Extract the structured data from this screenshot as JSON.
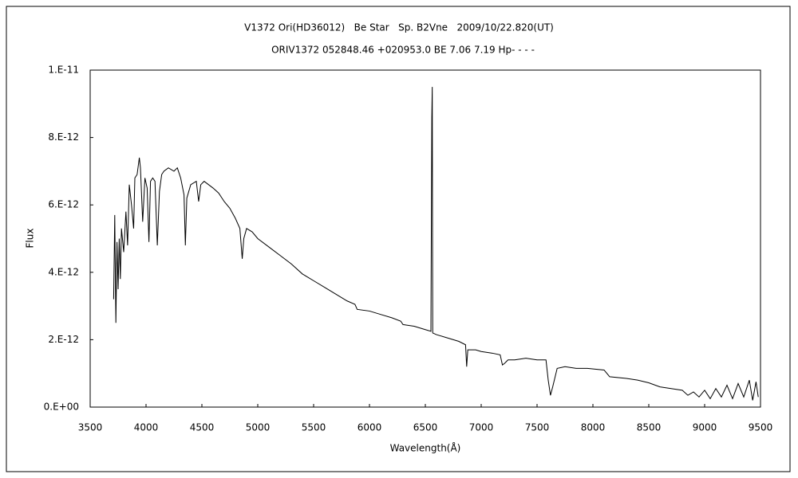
{
  "chart_data": {
    "type": "line",
    "title": "V1372 Ori(HD36012)   Be Star   Sp. B2Vne   2009/10/22.820(UT)",
    "subtitle": "ORIV1372 052848.46 +020953.0 BE 7.06 7.19 Hp- - - -",
    "x_label": "Wavelength(Å)",
    "y_label": "Flux",
    "color": "#000000",
    "xlim": [
      3500,
      9500
    ],
    "xticks": [
      3500,
      4000,
      4500,
      5000,
      5500,
      6000,
      6500,
      7000,
      7500,
      8000,
      8500,
      9000,
      9500
    ],
    "ylim": [
      0,
      1e-11
    ],
    "yticks": [
      {
        "value": 0,
        "label": "0.E+00"
      },
      {
        "value": 2e-12,
        "label": "2.E-12"
      },
      {
        "value": 4e-12,
        "label": "4.E-12"
      },
      {
        "value": 6e-12,
        "label": "6.E-12"
      },
      {
        "value": 8e-12,
        "label": "8.E-12"
      },
      {
        "value": 1e-11,
        "label": "1.E-11"
      }
    ],
    "x": [
      3710,
      3720,
      3730,
      3740,
      3750,
      3760,
      3770,
      3780,
      3800,
      3820,
      3835,
      3850,
      3870,
      3889,
      3900,
      3920,
      3940,
      3950,
      3970,
      3990,
      4010,
      4026,
      4040,
      4060,
      4080,
      4101,
      4120,
      4140,
      4160,
      4200,
      4250,
      4280,
      4310,
      4340,
      4352,
      4365,
      4400,
      4450,
      4471,
      4490,
      4520,
      4560,
      4600,
      4650,
      4700,
      4750,
      4800,
      4840,
      4861,
      4875,
      4900,
      4950,
      5000,
      5100,
      5200,
      5300,
      5400,
      5500,
      5600,
      5700,
      5800,
      5870,
      5890,
      6000,
      6100,
      6200,
      6280,
      6300,
      6400,
      6500,
      6550,
      6558,
      6562,
      6566,
      6600,
      6700,
      6800,
      6860,
      6870,
      6880,
      6950,
      7000,
      7100,
      7170,
      7190,
      7210,
      7240,
      7300,
      7400,
      7500,
      7580,
      7600,
      7620,
      7640,
      7680,
      7750,
      7850,
      7950,
      8100,
      8150,
      8300,
      8400,
      8500,
      8600,
      8700,
      8800,
      8850,
      8900,
      8950,
      9000,
      9050,
      9100,
      9150,
      9200,
      9250,
      9300,
      9350,
      9400,
      9430,
      9460,
      9480
    ],
    "values": [
      3.2e-12,
      5.7e-12,
      2.5e-12,
      4.9e-12,
      3.5e-12,
      5e-12,
      3.8e-12,
      5.3e-12,
      4.6e-12,
      5.8e-12,
      4.8e-12,
      6.6e-12,
      6e-12,
      5.3e-12,
      6.8e-12,
      6.9e-12,
      7.4e-12,
      7.1e-12,
      5.5e-12,
      6.8e-12,
      6.5e-12,
      4.9e-12,
      6.7e-12,
      6.8e-12,
      6.7e-12,
      4.8e-12,
      6.4e-12,
      6.9e-12,
      7e-12,
      7.1e-12,
      7e-12,
      7.1e-12,
      6.8e-12,
      6.3e-12,
      4.8e-12,
      6.2e-12,
      6.6e-12,
      6.7e-12,
      6.1e-12,
      6.6e-12,
      6.7e-12,
      6.6e-12,
      6.5e-12,
      6.35e-12,
      6.1e-12,
      5.9e-12,
      5.6e-12,
      5.3e-12,
      4.4e-12,
      5e-12,
      5.3e-12,
      5.2e-12,
      5e-12,
      4.75e-12,
      4.5e-12,
      4.25e-12,
      3.95e-12,
      3.75e-12,
      3.55e-12,
      3.35e-12,
      3.15e-12,
      3.05e-12,
      2.9e-12,
      2.85e-12,
      2.75e-12,
      2.65e-12,
      2.55e-12,
      2.45e-12,
      2.4e-12,
      2.3e-12,
      2.25e-12,
      8.6e-12,
      9.5e-12,
      2.2e-12,
      2.15e-12,
      2.05e-12,
      1.95e-12,
      1.85e-12,
      1.2e-12,
      1.7e-12,
      1.7e-12,
      1.65e-12,
      1.6e-12,
      1.55e-12,
      1.25e-12,
      1.3e-12,
      1.4e-12,
      1.4e-12,
      1.45e-12,
      1.4e-12,
      1.4e-12,
      8e-13,
      3.5e-13,
      6e-13,
      1.15e-12,
      1.2e-12,
      1.15e-12,
      1.15e-12,
      1.1e-12,
      9e-13,
      8.5e-13,
      8e-13,
      7.2e-13,
      6e-13,
      5.5e-13,
      5e-13,
      3.5e-13,
      4.5e-13,
      3e-13,
      5e-13,
      2.5e-13,
      5.5e-13,
      3e-13,
      6.5e-13,
      2.5e-13,
      7e-13,
      3e-13,
      8e-13,
      2e-13,
      7.5e-13,
      3e-13
    ]
  }
}
